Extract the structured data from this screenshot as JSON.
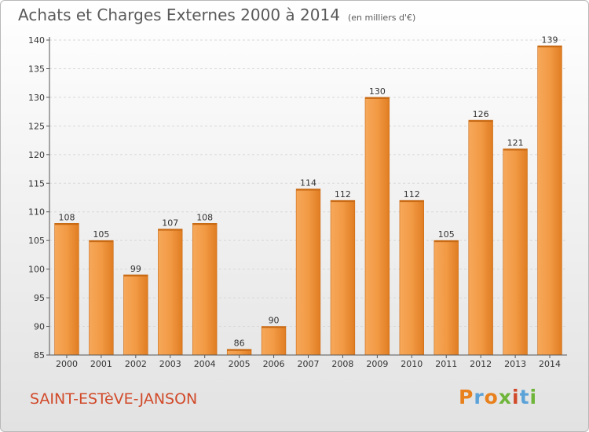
{
  "header": {
    "title": "Achats et Charges Externes 2000 à 2014",
    "subtitle": "(en milliers d'€)"
  },
  "footer": {
    "commune": "SAINT-ESTèVE-JANSON",
    "logo": "Proxiti",
    "logo_colors": [
      "#e8811d",
      "#5ba2d8",
      "#e8811d",
      "#6eb53a",
      "#d14a2a",
      "#5ba2d8",
      "#6eb53a"
    ]
  },
  "chart_data": {
    "type": "bar",
    "title": "Achats et Charges Externes 2000 à 2014",
    "subtitle": "(en milliers d'€)",
    "categories": [
      "2000",
      "2001",
      "2002",
      "2003",
      "2004",
      "2005",
      "2006",
      "2007",
      "2008",
      "2009",
      "2010",
      "2011",
      "2012",
      "2013",
      "2014"
    ],
    "values": [
      108,
      105,
      99,
      107,
      108,
      86,
      90,
      114,
      112,
      130,
      112,
      105,
      126,
      121,
      139
    ],
    "ylim": [
      85,
      140
    ],
    "yticks": [
      85,
      90,
      95,
      100,
      105,
      110,
      115,
      120,
      125,
      130,
      135,
      140
    ],
    "grid": true,
    "bar_color": "#f0943f",
    "bar_color_dark": "#d07018"
  }
}
